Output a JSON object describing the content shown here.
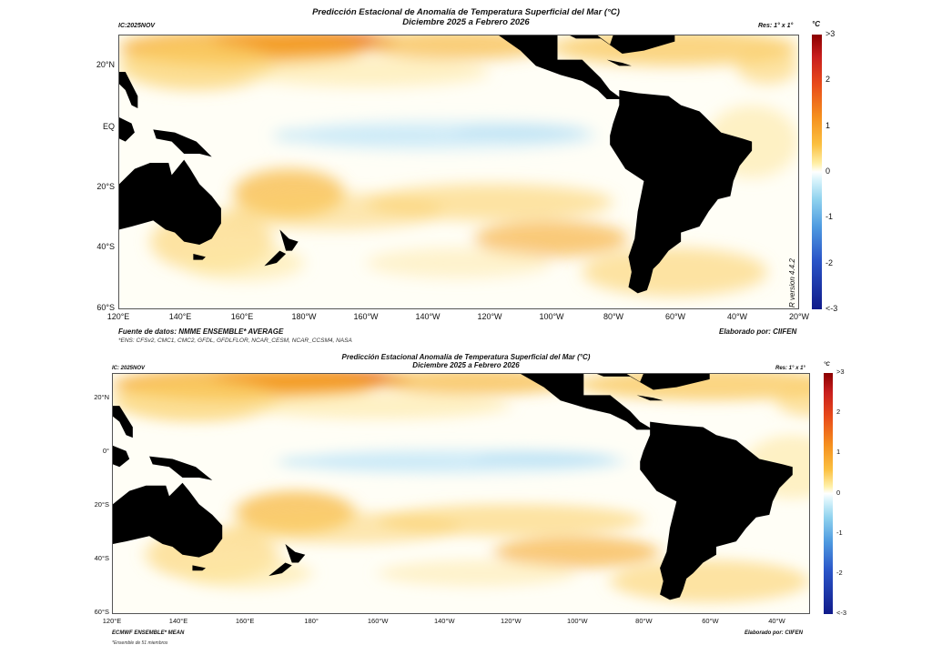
{
  "top": {
    "title": "Predicción Estacional de Anomalía de Temperatura Superficial del Mar (°C)",
    "subtitle": "Diciembre 2025 a Febrero 2026",
    "ic": "IC:2025NOV",
    "res": "Res: 1° x 1°",
    "unit": "°C",
    "lat_ticks": [
      "20°N",
      "EQ",
      "20°S",
      "40°S",
      "60°S"
    ],
    "lon_ticks": [
      "120°E",
      "140°E",
      "160°E",
      "180°W",
      "160°W",
      "140°W",
      "120°W",
      "100°W",
      "80°W",
      "60°W",
      "40°W",
      "20°W"
    ],
    "colorbar_ticks": [
      ">3",
      "2",
      "1",
      "0",
      "-1",
      "-2",
      "<-3"
    ],
    "source": "Fuente de datos: NMME ENSEMBLE* AVERAGE",
    "ensemble_note": "*ENS: CFSv2, CMC1, CMC2, GFDL, GFDLFLOR, NCAR_CESM, NCAR_CCSM4, NASA",
    "credit": "Elaborado por: CIIFEN",
    "version": "R version 4.4.2"
  },
  "bottom": {
    "title": "Predicción Estacional Anomalía de Temperatura Superficial del Mar (°C)",
    "subtitle": "Diciembre 2025 a Febrero 2026",
    "ic": "IC: 2025NOV",
    "res": "Res: 1° x 1°",
    "unit": "°C",
    "lat_ticks": [
      "20°N",
      "0°",
      "20°S",
      "40°S",
      "60°S"
    ],
    "lon_ticks": [
      "120°E",
      "140°E",
      "160°E",
      "180°",
      "160°W",
      "140°W",
      "120°W",
      "100°W",
      "80°W",
      "60°W",
      "40°W"
    ],
    "colorbar_ticks": [
      ">3",
      "2",
      "1",
      "0",
      "-1",
      "-2",
      "<-3"
    ],
    "source": "ECMWF ENSEMBLE* MEAN",
    "ensemble_note": "*Ensemble de 51 miembros",
    "credit": "Elaborado por: CIIFEN"
  },
  "colors": {
    "land": "#000000",
    "warm": "#f5a623",
    "hot": "#e2501c",
    "cool": "#8fd2ee",
    "neutral": "#ffffff"
  }
}
